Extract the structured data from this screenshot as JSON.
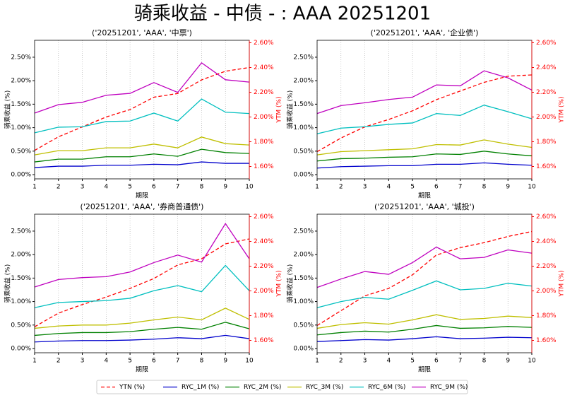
{
  "title": "骑乘收益 - 中债 - : AAA 20251201",
  "legend": [
    {
      "name": "YTN (%)",
      "color": "#ff0000",
      "linestyle": "dashed"
    },
    {
      "name": "RYC_1M (%)",
      "color": "#0000cc",
      "linestyle": "solid"
    },
    {
      "name": "RYC_2M (%)",
      "color": "#008000",
      "linestyle": "solid"
    },
    {
      "name": "RYC_3M (%)",
      "color": "#bfbf00",
      "linestyle": "solid"
    },
    {
      "name": "RYC_6M (%)",
      "color": "#00bfbf",
      "linestyle": "solid"
    },
    {
      "name": "RYC_9M (%)",
      "color": "#bf00bf",
      "linestyle": "solid"
    }
  ],
  "chart_data": [
    {
      "type": "line",
      "title": "('20251201', 'AAA', '中票')",
      "xlabel": "期限",
      "ylabel": "骑乘收益 (%)",
      "y2label": "YTM (%)",
      "grid": "x",
      "x": [
        1,
        2,
        3,
        4,
        5,
        6,
        7,
        8,
        9,
        10
      ],
      "xlim": [
        1,
        10
      ],
      "xticks": [
        1,
        2,
        3,
        4,
        5,
        6,
        7,
        8,
        9,
        10
      ],
      "ylim": [
        -0.09,
        2.86
      ],
      "yticks": [
        {
          "value": 0,
          "label": "0.00%"
        },
        {
          "value": 0.5,
          "label": "0.50%"
        },
        {
          "value": 1,
          "label": "1.00%"
        },
        {
          "value": 1.5,
          "label": "1.50%"
        },
        {
          "value": 2,
          "label": "2.00%"
        },
        {
          "value": 2.5,
          "label": "2.50%"
        }
      ],
      "y2lim": [
        1.5,
        2.62
      ],
      "y2ticks": [
        {
          "value": 1.6,
          "label": "1.60%"
        },
        {
          "value": 1.8,
          "label": "1.80%"
        },
        {
          "value": 2.0,
          "label": "2.00%"
        },
        {
          "value": 2.2,
          "label": "2.20%"
        },
        {
          "value": 2.4,
          "label": "2.40%"
        },
        {
          "value": 2.6,
          "label": "2.60%"
        }
      ],
      "series": [
        {
          "axis": "y2",
          "values": [
            1.73,
            1.84,
            1.92,
            2.0,
            2.06,
            2.16,
            2.19,
            2.3,
            2.37,
            2.4
          ]
        },
        {
          "values": [
            0.15,
            0.18,
            0.18,
            0.2,
            0.2,
            0.22,
            0.21,
            0.27,
            0.24,
            0.24
          ]
        },
        {
          "values": [
            0.27,
            0.33,
            0.33,
            0.38,
            0.38,
            0.44,
            0.39,
            0.54,
            0.47,
            0.45
          ]
        },
        {
          "values": [
            0.42,
            0.51,
            0.51,
            0.57,
            0.57,
            0.65,
            0.57,
            0.8,
            0.66,
            0.63
          ]
        },
        {
          "values": [
            0.89,
            1.01,
            1.02,
            1.13,
            1.14,
            1.31,
            1.14,
            1.61,
            1.33,
            1.3
          ]
        },
        {
          "values": [
            1.31,
            1.49,
            1.54,
            1.69,
            1.73,
            1.96,
            1.75,
            2.38,
            2.02,
            1.97
          ]
        }
      ]
    },
    {
      "type": "line",
      "title": "('20251201', 'AAA', '企业债')",
      "xlabel": "期限",
      "ylabel": "骑乘收益 (%)",
      "y2label": "YTM (%)",
      "grid": "x",
      "x": [
        1,
        2,
        3,
        4,
        5,
        6,
        7,
        8,
        9,
        10
      ],
      "xlim": [
        1,
        10
      ],
      "xticks": [
        1,
        2,
        3,
        4,
        5,
        6,
        7,
        8,
        9,
        10
      ],
      "ylim": [
        -0.09,
        2.86
      ],
      "yticks": [
        {
          "value": 0,
          "label": "0.00%"
        },
        {
          "value": 0.5,
          "label": "0.50%"
        },
        {
          "value": 1,
          "label": "1.00%"
        },
        {
          "value": 1.5,
          "label": "1.50%"
        },
        {
          "value": 2,
          "label": "2.00%"
        },
        {
          "value": 2.5,
          "label": "2.50%"
        }
      ],
      "y2lim": [
        1.5,
        2.62
      ],
      "y2ticks": [
        {
          "value": 1.6,
          "label": "1.60%"
        },
        {
          "value": 1.8,
          "label": "1.80%"
        },
        {
          "value": 2.0,
          "label": "2.00%"
        },
        {
          "value": 2.2,
          "label": "2.20%"
        },
        {
          "value": 2.4,
          "label": "2.40%"
        },
        {
          "value": 2.6,
          "label": "2.60%"
        }
      ],
      "series": [
        {
          "axis": "y2",
          "values": [
            1.72,
            1.83,
            1.92,
            1.98,
            2.05,
            2.14,
            2.21,
            2.28,
            2.33,
            2.34
          ]
        },
        {
          "values": [
            0.14,
            0.17,
            0.18,
            0.19,
            0.19,
            0.22,
            0.22,
            0.25,
            0.22,
            0.2
          ]
        },
        {
          "values": [
            0.29,
            0.34,
            0.35,
            0.37,
            0.38,
            0.44,
            0.43,
            0.5,
            0.44,
            0.4
          ]
        },
        {
          "values": [
            0.42,
            0.49,
            0.51,
            0.53,
            0.55,
            0.64,
            0.63,
            0.74,
            0.65,
            0.58
          ]
        },
        {
          "values": [
            0.87,
            0.99,
            1.02,
            1.07,
            1.1,
            1.3,
            1.26,
            1.48,
            1.34,
            1.19
          ]
        },
        {
          "values": [
            1.3,
            1.47,
            1.53,
            1.6,
            1.65,
            1.91,
            1.89,
            2.21,
            2.06,
            1.8
          ]
        }
      ]
    },
    {
      "type": "line",
      "title": "('20251201', 'AAA', '券商普通债')",
      "xlabel": "期限",
      "ylabel": "骑乘收益 (%)",
      "y2label": "YTM (%)",
      "grid": "x",
      "x": [
        1,
        2,
        3,
        4,
        5,
        6,
        7,
        8,
        9,
        10
      ],
      "xlim": [
        1,
        10
      ],
      "xticks": [
        1,
        2,
        3,
        4,
        5,
        6,
        7,
        8,
        9,
        10
      ],
      "ylim": [
        -0.09,
        2.86
      ],
      "yticks": [
        {
          "value": 0,
          "label": "0.00%"
        },
        {
          "value": 0.5,
          "label": "0.50%"
        },
        {
          "value": 1,
          "label": "1.00%"
        },
        {
          "value": 1.5,
          "label": "1.50%"
        },
        {
          "value": 2,
          "label": "2.00%"
        },
        {
          "value": 2.5,
          "label": "2.50%"
        }
      ],
      "y2lim": [
        1.5,
        2.62
      ],
      "y2ticks": [
        {
          "value": 1.6,
          "label": "1.60%"
        },
        {
          "value": 1.8,
          "label": "1.80%"
        },
        {
          "value": 2.0,
          "label": "2.00%"
        },
        {
          "value": 2.2,
          "label": "2.20%"
        },
        {
          "value": 2.4,
          "label": "2.40%"
        },
        {
          "value": 2.6,
          "label": "2.60%"
        }
      ],
      "series": [
        {
          "axis": "y2",
          "values": [
            1.71,
            1.82,
            1.89,
            1.95,
            2.02,
            2.1,
            2.21,
            2.26,
            2.38,
            2.42
          ]
        },
        {
          "values": [
            0.14,
            0.16,
            0.17,
            0.17,
            0.18,
            0.2,
            0.23,
            0.21,
            0.28,
            0.21
          ]
        },
        {
          "values": [
            0.28,
            0.32,
            0.34,
            0.34,
            0.36,
            0.41,
            0.45,
            0.41,
            0.56,
            0.42
          ]
        },
        {
          "values": [
            0.43,
            0.48,
            0.5,
            0.5,
            0.54,
            0.61,
            0.67,
            0.61,
            0.86,
            0.62
          ]
        },
        {
          "values": [
            0.87,
            0.98,
            1.0,
            1.02,
            1.07,
            1.23,
            1.34,
            1.21,
            1.77,
            1.23
          ]
        },
        {
          "values": [
            1.31,
            1.47,
            1.51,
            1.53,
            1.63,
            1.83,
            1.99,
            1.84,
            2.66,
            1.91
          ]
        }
      ]
    },
    {
      "type": "line",
      "title": "('20251201', 'AAA', '城投')",
      "xlabel": "期限",
      "ylabel": "骑乘收益 (%)",
      "y2label": "YTM (%)",
      "grid": "x",
      "x": [
        1,
        2,
        3,
        4,
        5,
        6,
        7,
        8,
        9,
        10
      ],
      "xlim": [
        1,
        10
      ],
      "xticks": [
        1,
        2,
        3,
        4,
        5,
        6,
        7,
        8,
        9,
        10
      ],
      "ylim": [
        -0.09,
        2.86
      ],
      "yticks": [
        {
          "value": 0,
          "label": "0.00%"
        },
        {
          "value": 0.5,
          "label": "0.50%"
        },
        {
          "value": 1,
          "label": "1.00%"
        },
        {
          "value": 1.5,
          "label": "1.50%"
        },
        {
          "value": 2,
          "label": "2.00%"
        },
        {
          "value": 2.5,
          "label": "2.50%"
        }
      ],
      "y2lim": [
        1.5,
        2.62
      ],
      "y2ticks": [
        {
          "value": 1.6,
          "label": "1.60%"
        },
        {
          "value": 1.8,
          "label": "1.80%"
        },
        {
          "value": 2.0,
          "label": "2.00%"
        },
        {
          "value": 2.2,
          "label": "2.20%"
        },
        {
          "value": 2.4,
          "label": "2.40%"
        },
        {
          "value": 2.6,
          "label": "2.60%"
        }
      ],
      "series": [
        {
          "axis": "y2",
          "values": [
            1.72,
            1.84,
            1.96,
            2.02,
            2.13,
            2.29,
            2.35,
            2.39,
            2.44,
            2.48
          ]
        },
        {
          "values": [
            0.15,
            0.17,
            0.19,
            0.18,
            0.21,
            0.25,
            0.21,
            0.22,
            0.24,
            0.23
          ]
        },
        {
          "values": [
            0.29,
            0.34,
            0.37,
            0.35,
            0.41,
            0.49,
            0.43,
            0.44,
            0.47,
            0.45
          ]
        },
        {
          "values": [
            0.43,
            0.51,
            0.55,
            0.52,
            0.61,
            0.72,
            0.62,
            0.64,
            0.69,
            0.66
          ]
        },
        {
          "values": [
            0.87,
            1.0,
            1.09,
            1.05,
            1.24,
            1.44,
            1.25,
            1.28,
            1.39,
            1.33
          ]
        },
        {
          "values": [
            1.3,
            1.48,
            1.64,
            1.58,
            1.83,
            2.16,
            1.91,
            1.94,
            2.1,
            2.03
          ]
        }
      ]
    }
  ]
}
